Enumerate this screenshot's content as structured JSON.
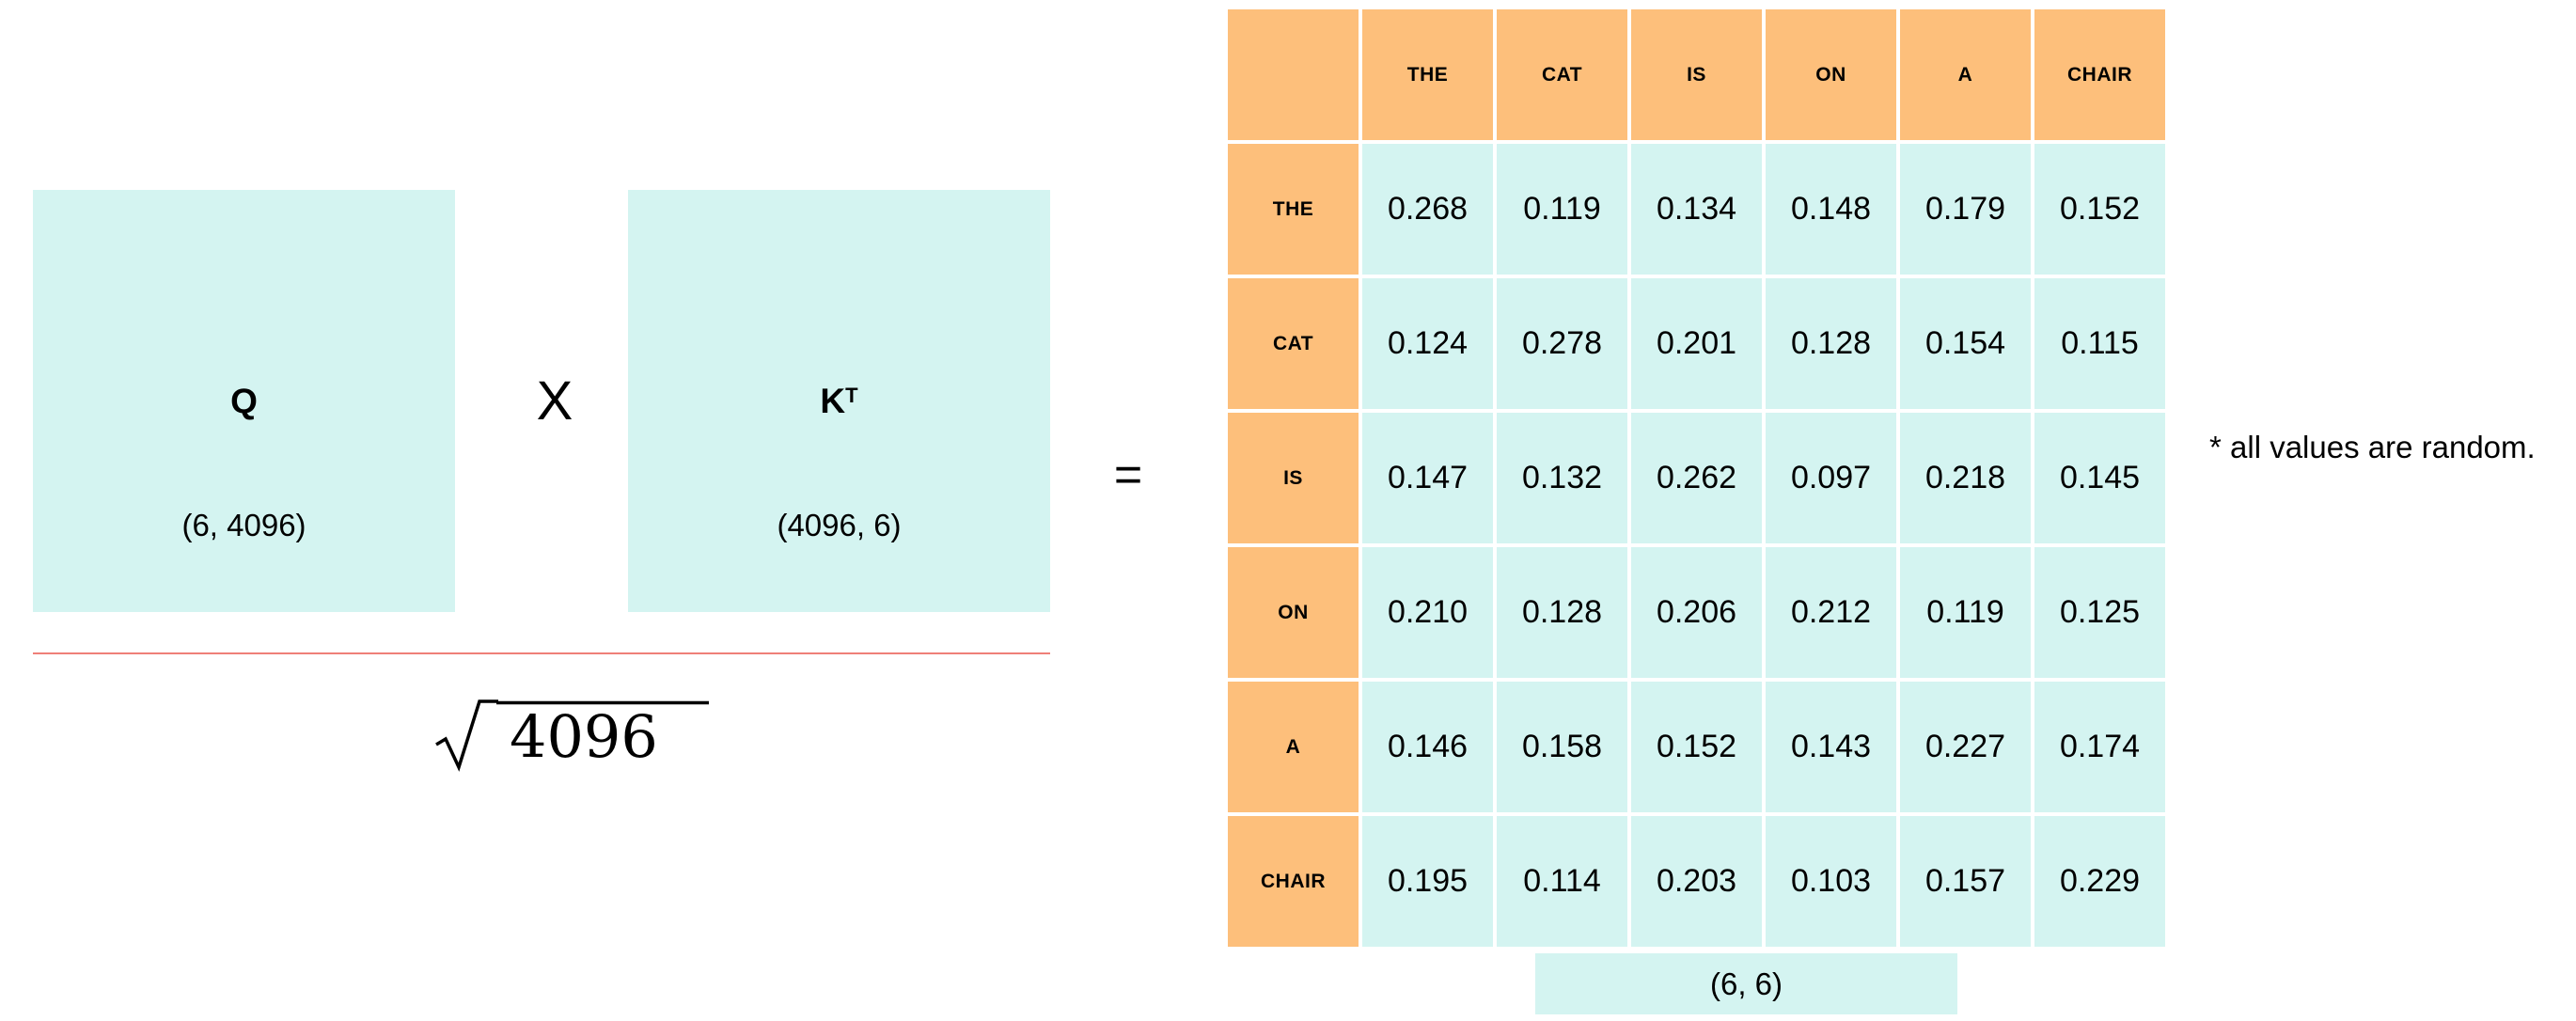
{
  "left_operand": {
    "title": "Q",
    "shape": "(6, 4096)"
  },
  "times_symbol": "X",
  "right_operand": {
    "title": "K",
    "superscript": "T",
    "shape": "(4096, 6)"
  },
  "denominator": {
    "text": "4096"
  },
  "equals_symbol": "=",
  "result": {
    "columns": [
      "THE",
      "CAT",
      "IS",
      "ON",
      "A",
      "CHAIR"
    ],
    "rows": [
      {
        "label": "THE",
        "values": [
          "0.268",
          "0.119",
          "0.134",
          "0.148",
          "0.179",
          "0.152"
        ]
      },
      {
        "label": "CAT",
        "values": [
          "0.124",
          "0.278",
          "0.201",
          "0.128",
          "0.154",
          "0.115"
        ]
      },
      {
        "label": "IS",
        "values": [
          "0.147",
          "0.132",
          "0.262",
          "0.097",
          "0.218",
          "0.145"
        ]
      },
      {
        "label": "ON",
        "values": [
          "0.210",
          "0.128",
          "0.206",
          "0.212",
          "0.119",
          "0.125"
        ]
      },
      {
        "label": "A",
        "values": [
          "0.146",
          "0.158",
          "0.152",
          "0.143",
          "0.227",
          "0.174"
        ]
      },
      {
        "label": "CHAIR",
        "values": [
          "0.195",
          "0.114",
          "0.203",
          "0.103",
          "0.157",
          "0.229"
        ]
      }
    ],
    "shape": "(6, 6)"
  },
  "footnote": "* all values are random.",
  "colors": {
    "matrix_fill": "#d4f4f1",
    "header_fill": "#fdbf7b",
    "fraction_line": "#ef7f78"
  }
}
